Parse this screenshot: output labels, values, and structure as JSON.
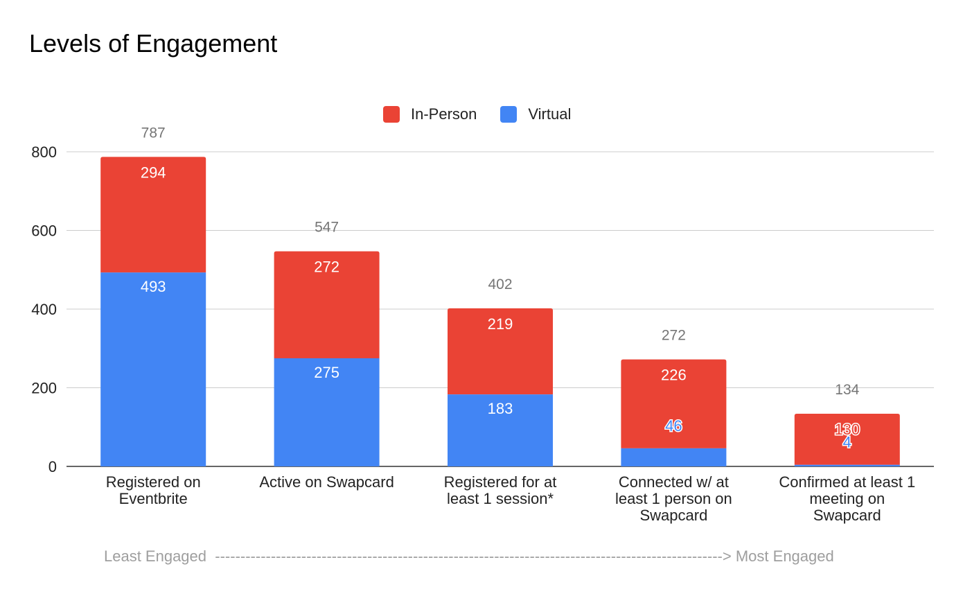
{
  "title": "Levels of Engagement",
  "footer": {
    "left": "Least Engaged",
    "arrow": "---------------------------------------------------------------------------------------------------->",
    "right": "Most Engaged"
  },
  "chart_data": {
    "type": "bar",
    "stacked": true,
    "title": "Levels of Engagement",
    "xlabel": "",
    "ylabel": "",
    "ylim": [
      0,
      800
    ],
    "yticks": [
      0,
      200,
      400,
      600,
      800
    ],
    "grid": true,
    "legend_position": "top-center",
    "categories": [
      [
        "Registered on",
        "Eventbrite"
      ],
      [
        "Active on Swapcard"
      ],
      [
        "Registered for at",
        "least 1 session*"
      ],
      [
        "Connected w/ at",
        "least 1 person on",
        "Swapcard"
      ],
      [
        "Confirmed at least 1",
        "meeting on",
        "Swapcard"
      ]
    ],
    "series": [
      {
        "name": "Virtual",
        "color": "#4285f4",
        "values": [
          493,
          275,
          183,
          46,
          4
        ]
      },
      {
        "name": "In-Person",
        "color": "#ea4335",
        "values": [
          294,
          272,
          219,
          226,
          130
        ]
      }
    ],
    "totals": [
      787,
      547,
      402,
      272,
      134
    ],
    "legend": [
      "In-Person",
      "Virtual"
    ]
  }
}
